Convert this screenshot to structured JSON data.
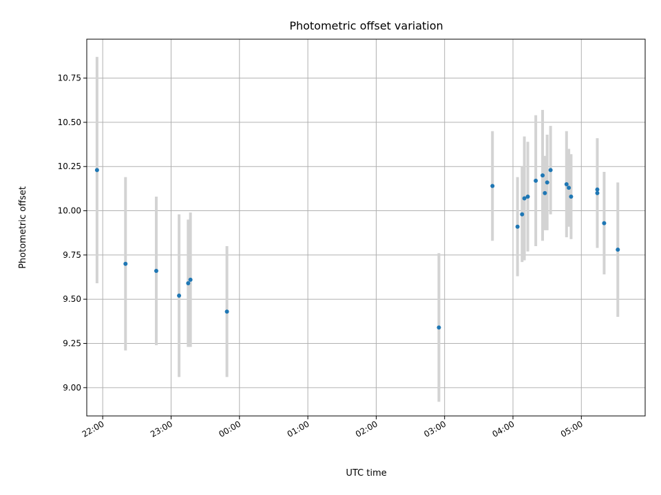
{
  "chart_data": {
    "type": "scatter",
    "title": "Photometric offset variation",
    "xlabel": "UTC time",
    "ylabel": "Photometric offset",
    "x_axis": "time",
    "x_range": [
      "21:46",
      "05:56"
    ],
    "ylim": [
      8.84,
      10.97
    ],
    "grid": true,
    "x_ticks": [
      "22:00",
      "23:00",
      "00:00",
      "01:00",
      "02:00",
      "03:00",
      "04:00",
      "05:00"
    ],
    "y_ticks": [
      "9.00",
      "9.25",
      "9.50",
      "9.75",
      "10.00",
      "10.25",
      "10.50",
      "10.75"
    ],
    "point_color": "#1f77b4",
    "errorbar_color": "#d3d3d3",
    "points": [
      {
        "t": "21:55",
        "y": 10.23,
        "err": 0.64
      },
      {
        "t": "22:20",
        "y": 9.7,
        "err": 0.49
      },
      {
        "t": "22:47",
        "y": 9.66,
        "err": 0.42
      },
      {
        "t": "23:07",
        "y": 9.52,
        "err": 0.46
      },
      {
        "t": "23:15",
        "y": 9.59,
        "err": 0.36
      },
      {
        "t": "23:17",
        "y": 9.61,
        "err": 0.38
      },
      {
        "t": "23:49",
        "y": 9.43,
        "err": 0.37
      },
      {
        "t": "02:55",
        "y": 9.34,
        "err": 0.42
      },
      {
        "t": "03:42",
        "y": 10.14,
        "err": 0.31
      },
      {
        "t": "04:04",
        "y": 9.91,
        "err": 0.28
      },
      {
        "t": "04:08",
        "y": 9.98,
        "err": 0.27
      },
      {
        "t": "04:10",
        "y": 10.07,
        "err": 0.35
      },
      {
        "t": "04:13",
        "y": 10.08,
        "err": 0.31
      },
      {
        "t": "04:20",
        "y": 10.17,
        "err": 0.37
      },
      {
        "t": "04:26",
        "y": 10.2,
        "err": 0.37
      },
      {
        "t": "04:28",
        "y": 10.1,
        "err": 0.21
      },
      {
        "t": "04:30",
        "y": 10.16,
        "err": 0.27
      },
      {
        "t": "04:33",
        "y": 10.23,
        "err": 0.25
      },
      {
        "t": "04:47",
        "y": 10.15,
        "err": 0.3
      },
      {
        "t": "04:49",
        "y": 10.13,
        "err": 0.22
      },
      {
        "t": "04:51",
        "y": 10.08,
        "err": 0.24
      },
      {
        "t": "05:14",
        "y": 10.12,
        "err": 0.29
      },
      {
        "t": "05:14",
        "y": 10.1,
        "err": 0.31
      },
      {
        "t": "05:20",
        "y": 9.93,
        "err": 0.29
      },
      {
        "t": "05:32",
        "y": 9.78,
        "err": 0.38
      }
    ]
  }
}
